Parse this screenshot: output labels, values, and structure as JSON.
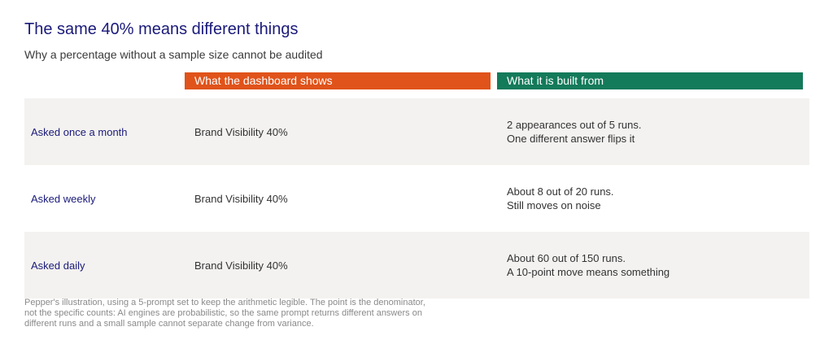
{
  "title": "The same 40% means different things",
  "subtitle": "Why a percentage without a sample size cannot be audited",
  "columns": {
    "shows": "What the dashboard shows",
    "built": "What it is built from"
  },
  "rows": [
    {
      "label": "Asked once a month",
      "shows": "Brand Visibility 40%",
      "built_line1": "2 appearances out of 5 runs.",
      "built_line2": "One different answer flips it"
    },
    {
      "label": "Asked weekly",
      "shows": "Brand Visibility 40%",
      "built_line1": "About 8 out of 20 runs.",
      "built_line2": "Still moves on noise"
    },
    {
      "label": "Asked daily",
      "shows": "Brand Visibility 40%",
      "built_line1": "About 60 out of 150 runs.",
      "built_line2": "A 10-point move means something"
    }
  ],
  "footnote": "Pepper's illustration, using a 5-prompt set to keep the arithmetic legible. The point is the denominator, not the specific counts: AI engines are probabilistic, so the same prompt returns different answers on different runs and a small sample cannot separate change from variance.",
  "colors": {
    "title": "#1a1a7a",
    "shows_header": "#e0531a",
    "built_header": "#137a5a",
    "row_shade": "#f3f2f0"
  }
}
